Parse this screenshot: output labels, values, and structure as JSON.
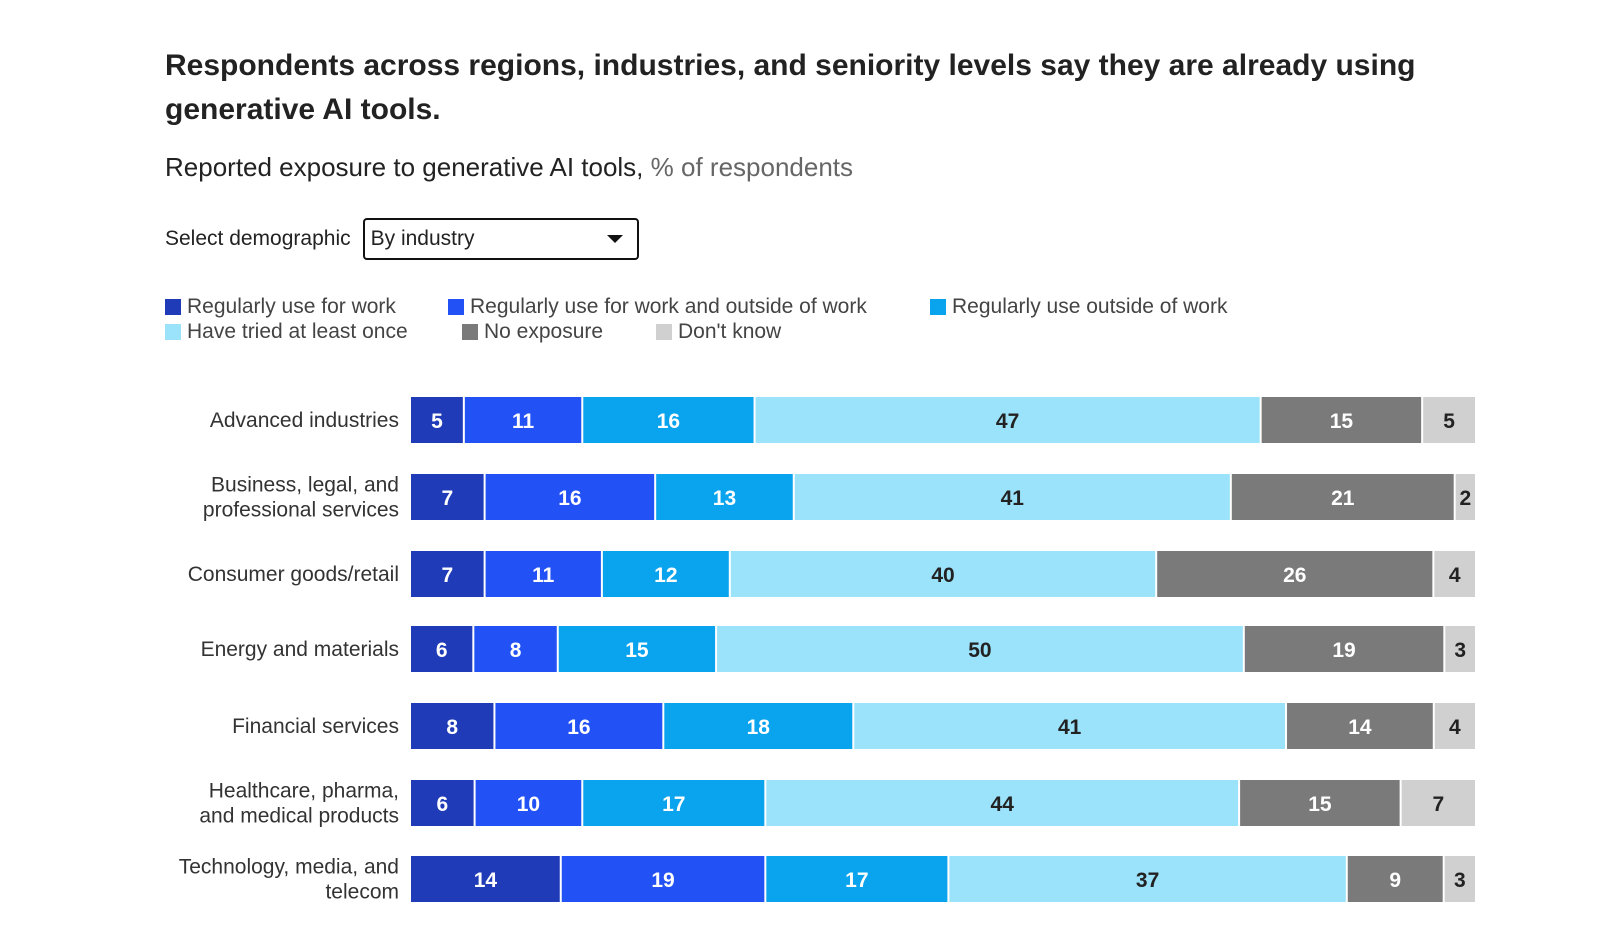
{
  "title": "Respondents across regions, industries, and seniority levels say they are already using generative AI tools.",
  "subtitle": "Reported exposure to generative AI tools,",
  "subtitle_unit": "% of respondents",
  "selector": {
    "label": "Select demographic",
    "value": "By industry"
  },
  "colors": {
    "Regularly use for work": "#1f3bb8",
    "Regularly use for work and outside of work": "#2251f5",
    "Regularly use outside of work": "#0aa3ee",
    "Have tried at least once": "#9be3fb",
    "No exposure": "#7a7a7a",
    "Don't know": "#d0d0d0"
  },
  "chart_data": {
    "type": "bar",
    "orientation": "horizontal",
    "stacked": true,
    "normalized": true,
    "categories": [
      [
        "Advanced industries"
      ],
      [
        "Business, legal, and",
        "professional services"
      ],
      [
        "Consumer goods/retail"
      ],
      [
        "Energy and materials"
      ],
      [
        "Financial services"
      ],
      [
        "Healthcare, pharma,",
        "and medical products"
      ],
      [
        "Technology, media, and",
        "telecom"
      ]
    ],
    "series": [
      {
        "name": "Regularly use for work",
        "values": [
          5,
          7,
          7,
          6,
          8,
          6,
          14
        ]
      },
      {
        "name": "Regularly use for work and outside of work",
        "values": [
          11,
          16,
          11,
          8,
          16,
          10,
          19
        ]
      },
      {
        "name": "Regularly use outside of work",
        "values": [
          16,
          13,
          12,
          15,
          18,
          17,
          17
        ]
      },
      {
        "name": "Have tried at least once",
        "values": [
          47,
          41,
          40,
          50,
          41,
          44,
          37
        ]
      },
      {
        "name": "No exposure",
        "values": [
          15,
          21,
          26,
          19,
          14,
          15,
          9
        ]
      },
      {
        "name": "Don't know",
        "values": [
          5,
          2,
          4,
          3,
          4,
          7,
          3
        ]
      }
    ],
    "legend_position": "top-left",
    "grid": false
  }
}
